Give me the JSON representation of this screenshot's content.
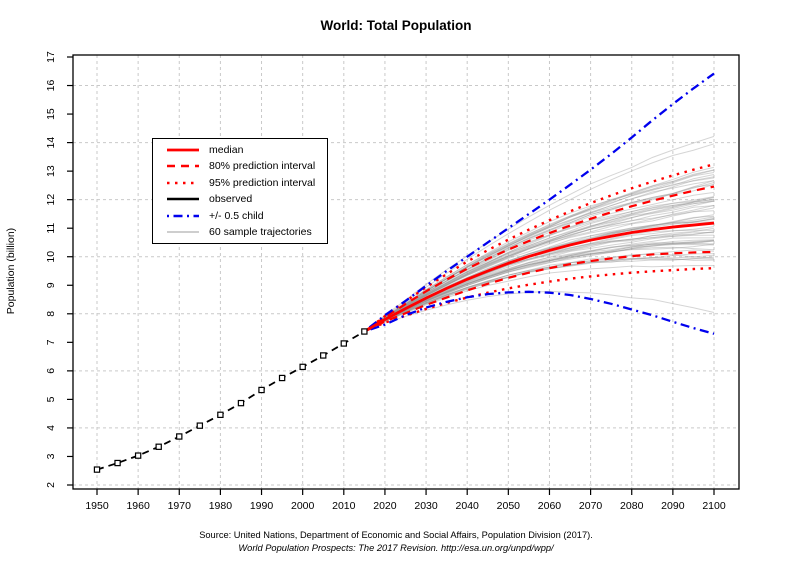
{
  "chart": {
    "title": "World: Total Population",
    "ylabel": "Population (billion)",
    "caption_line1": "Source: United Nations, Department of Economic and Social Affairs, Population Division (2017).",
    "caption_line2": "World Population Prospects: The 2017 Revision. http://esa.un.org/unpd/wpp/"
  },
  "legend": {
    "items": [
      {
        "label": "median",
        "color": "#ff0000",
        "dash": "",
        "width": 2.8
      },
      {
        "label": "80% prediction interval",
        "color": "#ff0000",
        "dash": "8,6",
        "width": 2.4
      },
      {
        "label": "95% prediction interval",
        "color": "#ff0000",
        "dash": "2.5,5.5",
        "width": 2.6
      },
      {
        "label": "observed",
        "color": "#000000",
        "dash": "",
        "width": 2.4
      },
      {
        "label": "+/- 0.5 child",
        "color": "#0000ee",
        "dash": "2,4.5,9,4.5",
        "width": 2.4
      },
      {
        "label": "60 sample trajectories",
        "color": "#bdbdbd",
        "dash": "",
        "width": 1.6
      }
    ]
  },
  "chart_data": {
    "type": "line",
    "title": "World: Total Population",
    "xlabel": "",
    "ylabel": "Population (billion)",
    "xlim": [
      1944,
      2106
    ],
    "ylim": [
      1.85,
      17.1
    ],
    "x_ticks": [
      1950,
      1960,
      1970,
      1980,
      1990,
      2000,
      2010,
      2020,
      2030,
      2040,
      2050,
      2060,
      2070,
      2080,
      2090,
      2100
    ],
    "y_ticks": [
      2,
      3,
      4,
      5,
      6,
      7,
      8,
      9,
      10,
      11,
      12,
      13,
      14,
      15,
      16,
      17
    ],
    "grid": {
      "x_every": 10,
      "y_every": 2,
      "color": "#c9c9c9",
      "dash": "3,3"
    },
    "observed": {
      "name": "observed",
      "color": "#000000",
      "x_start": 1950,
      "x_step": 5,
      "values": [
        2.54,
        2.77,
        3.03,
        3.34,
        3.7,
        4.08,
        4.46,
        4.87,
        5.33,
        5.75,
        6.14,
        6.54,
        6.96,
        7.38
      ]
    },
    "projection": {
      "x_start": 2015,
      "x_step": 5,
      "x_end": 2100,
      "series": [
        {
          "name": "95% prediction interval upper",
          "color": "#ff0000",
          "dash": "2.5,5.5",
          "width": 2.4,
          "values": [
            7.38,
            7.92,
            8.44,
            8.93,
            9.39,
            9.83,
            10.23,
            10.6,
            10.95,
            11.28,
            11.59,
            11.88,
            12.15,
            12.4,
            12.63,
            12.85,
            13.05,
            13.24
          ]
        },
        {
          "name": "95% prediction interval lower",
          "color": "#ff0000",
          "dash": "2.5,5.5",
          "width": 2.4,
          "values": [
            7.38,
            7.69,
            7.93,
            8.17,
            8.38,
            8.57,
            8.74,
            8.89,
            9.02,
            9.13,
            9.23,
            9.31,
            9.38,
            9.44,
            9.49,
            9.53,
            9.57,
            9.6
          ]
        },
        {
          "name": "80% prediction interval upper",
          "color": "#ff0000",
          "dash": "8,6",
          "width": 2.2,
          "values": [
            7.38,
            7.88,
            8.34,
            8.79,
            9.2,
            9.58,
            9.93,
            10.25,
            10.55,
            10.83,
            11.09,
            11.33,
            11.56,
            11.77,
            11.96,
            12.14,
            12.31,
            12.46
          ]
        },
        {
          "name": "80% prediction interval lower",
          "color": "#ff0000",
          "dash": "8,6",
          "width": 2.2,
          "values": [
            7.38,
            7.73,
            8.02,
            8.31,
            8.57,
            8.82,
            9.05,
            9.26,
            9.44,
            9.6,
            9.74,
            9.85,
            9.94,
            10.02,
            10.08,
            10.12,
            10.15,
            10.17
          ]
        },
        {
          "name": "+0.5 child",
          "color": "#0000ee",
          "dash": "2,4.5,9,4.5",
          "width": 2.3,
          "values": [
            7.38,
            7.95,
            8.45,
            8.98,
            9.5,
            10.0,
            10.5,
            11.0,
            11.5,
            12.0,
            12.52,
            13.05,
            13.6,
            14.18,
            14.78,
            15.35,
            15.9,
            16.42
          ]
        },
        {
          "name": "-0.5 child",
          "color": "#0000ee",
          "dash": "2,4.5,9,4.5",
          "width": 2.3,
          "values": [
            7.38,
            7.62,
            7.95,
            8.22,
            8.42,
            8.58,
            8.69,
            8.75,
            8.77,
            8.74,
            8.66,
            8.52,
            8.35,
            8.15,
            7.95,
            7.72,
            7.5,
            7.3
          ]
        },
        {
          "name": "median",
          "color": "#ff0000",
          "dash": "",
          "width": 2.8,
          "values": [
            7.38,
            7.8,
            8.18,
            8.55,
            8.89,
            9.21,
            9.5,
            9.77,
            10.01,
            10.22,
            10.41,
            10.58,
            10.72,
            10.85,
            10.95,
            11.04,
            11.11,
            11.18
          ]
        }
      ],
      "sample_trajectories": {
        "count": 60,
        "color": "#969696",
        "opacity": 0.4,
        "seed": 20170621,
        "sigma_at_2100": 0.95
      }
    }
  }
}
